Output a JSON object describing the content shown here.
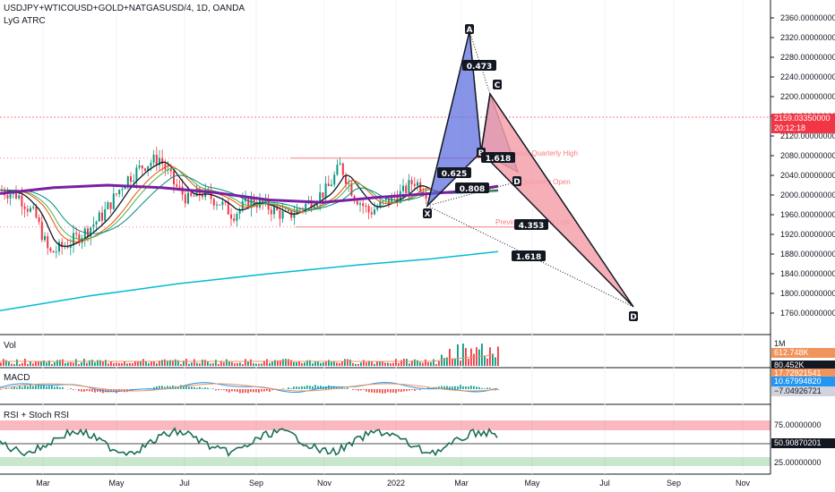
{
  "header": {
    "symbol_line": "USDJPY+WTICOUSD+GOLD+NATGASUSD/4, 1D, OANDA",
    "indicator": "LyG ATRC"
  },
  "panes": {
    "vol": {
      "label": "Vol",
      "axis_top": "1M",
      "tag_1": "612.748K",
      "tag_2": "80.452K"
    },
    "macd": {
      "label": "MACD",
      "tag_1": "17.72921541",
      "tag_2": "10.67994820",
      "tag_3": "−7.04926721"
    },
    "rsi": {
      "label": "RSI + Stoch RSI",
      "tick_top": "75.00000000",
      "tick_bottom": "25.00000000",
      "tag": "50.90870201"
    }
  },
  "price_tags": {
    "last": "2159.03350000",
    "countdown": "20:12:18"
  },
  "colors": {
    "up": "#089981",
    "down": "#f23645",
    "pattern_blue": "#5566dd",
    "pattern_red": "#f5a0aa",
    "sma_long": "#00bcd4",
    "ma_purple": "#7b1fa2",
    "rsi_line": "#1b6e55"
  },
  "chart_data": {
    "type": "line",
    "y_ticks": [
      "2360.00000000",
      "2320.00000000",
      "2280.00000000",
      "2240.00000000",
      "2200.00000000",
      "2160.00000000",
      "2120.00000000",
      "2080.00000000",
      "2040.00000000",
      "2000.00000000",
      "1960.00000000",
      "1920.00000000",
      "1880.00000000",
      "1840.00000000",
      "1800.00000000",
      "1760.00000000"
    ],
    "x_ticks": [
      "Mar",
      "May",
      "Jul",
      "Sep",
      "Nov",
      "2022",
      "Mar",
      "May",
      "Jul",
      "Sep",
      "Nov"
    ],
    "pattern": {
      "points": [
        "X",
        "A",
        "B",
        "C",
        "D",
        "D"
      ],
      "ratios": [
        "0.473",
        "0.625",
        "1.618",
        "0.808",
        "1.618",
        "4.353"
      ]
    },
    "annotations": [
      "Previous Quarterly High",
      "Quarterly Open",
      "Previous Quarterly Low"
    ]
  }
}
